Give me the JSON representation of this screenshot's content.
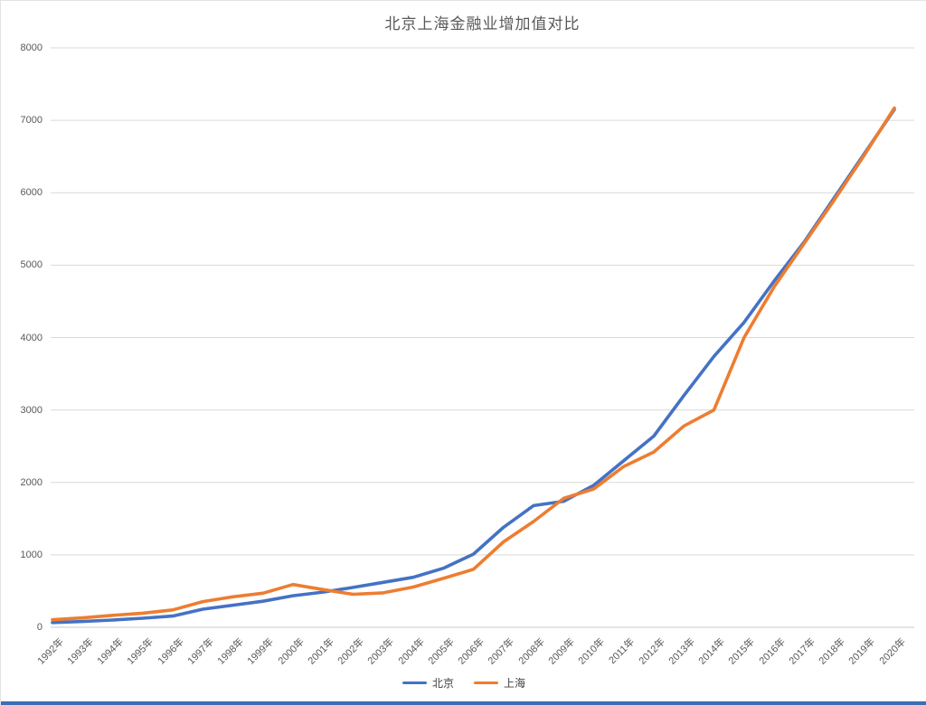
{
  "chart": {
    "title": "北京上海金融业增加值对比",
    "axis_text_color": "#595959",
    "gridline_color": "#d9d9d9",
    "axis_line_color": "#c9c9c9",
    "background_color": "#ffffff",
    "window_edge_color": "#3c6db5"
  },
  "chart_data": {
    "type": "line",
    "title": "北京上海金融业增加值对比",
    "categories": [
      "1992年",
      "1993年",
      "1994年",
      "1995年",
      "1996年",
      "1997年",
      "1998年",
      "1999年",
      "2000年",
      "2001年",
      "2002年",
      "2003年",
      "2004年",
      "2005年",
      "2006年",
      "2007年",
      "2008年",
      "2009年",
      "2010年",
      "2011年",
      "2012年",
      "2013年",
      "2014年",
      "2015年",
      "2016年",
      "2017年",
      "2018年",
      "2019年",
      "2020年"
    ],
    "series": [
      {
        "name": "北京",
        "color": "#4472c4",
        "values": [
          65,
          80,
          100,
          125,
          155,
          250,
          305,
          360,
          435,
          485,
          550,
          620,
          690,
          815,
          1010,
          1380,
          1680,
          1740,
          1960,
          2300,
          2640,
          3200,
          3740,
          4210,
          4780,
          5320,
          5930,
          6540,
          7150
        ]
      },
      {
        "name": "上海",
        "color": "#ed7d31",
        "values": [
          103,
          130,
          165,
          195,
          240,
          355,
          420,
          470,
          590,
          520,
          455,
          475,
          555,
          675,
          800,
          1180,
          1460,
          1780,
          1910,
          2220,
          2420,
          2780,
          3000,
          4000,
          4700,
          5300,
          5900,
          6520,
          7170
        ]
      }
    ],
    "ylim": [
      0,
      8000
    ],
    "y_ticks": [
      0,
      1000,
      2000,
      3000,
      4000,
      5000,
      6000,
      7000,
      8000
    ],
    "grid": true,
    "legend_position": "bottom"
  }
}
